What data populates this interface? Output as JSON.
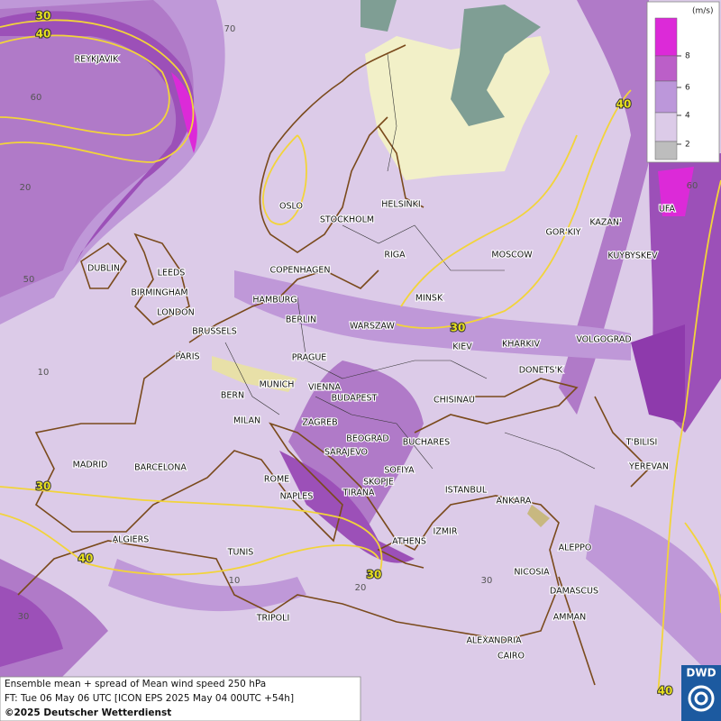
{
  "map": {
    "footer": {
      "line1": "Ensemble mean + spread of Mean wind speed 250 hPa",
      "line2": "FT: Tue 06 May 06 UTC [ICON EPS 2025 May 04 00UTC +54h]",
      "copyright": "©2025 Deutscher Wetterdienst"
    },
    "logo": "DWD",
    "legend": {
      "unit": "(m/s)",
      "ticks": [
        8,
        6,
        4,
        2
      ],
      "colors": [
        "#dc2ad8",
        "#bb5fc8",
        "#bc97da",
        "#dccbe8",
        "#bdbdbd"
      ]
    },
    "grid_labels": [
      70,
      60,
      20,
      50,
      10,
      30,
      10,
      20,
      30,
      60
    ],
    "contour_labels": [
      30,
      40,
      40,
      30,
      30,
      40,
      30,
      40
    ],
    "cities": [
      "REYKJAVIK",
      "OSLO",
      "STOCKHOLM",
      "HELSINKI",
      "DUBLIN",
      "LEEDS",
      "BIRMINGHAM",
      "LONDON",
      "COPENHAGEN",
      "RIGA",
      "MOSCOW",
      "GOR'KIY",
      "KAZAN'",
      "UFA",
      "KUYBYSKEV",
      "HAMBURG",
      "BERLIN",
      "MINSK",
      "WARSZAW",
      "BRUSSELS",
      "KIEV",
      "KHARKIV",
      "VOLGOGRAD",
      "PARIS",
      "PRAGUE",
      "DONETS'K",
      "BERN",
      "MUNICH",
      "VIENNA",
      "BUDAPEST",
      "CHISINAU",
      "MILAN",
      "ZAGREB",
      "BEOGRAD",
      "BUCHARES",
      "T'BILISI",
      "MADRID",
      "BARCELONA",
      "SARAJEVO",
      "SOFIYA",
      "YEREVAN",
      "ROME",
      "SKOPJE",
      "ISTANBUL",
      "NAPLES",
      "TIRANA",
      "ANKARA",
      "ALGIERS",
      "ATHENS",
      "IZMIR",
      "ALEPPO",
      "TUNIS",
      "NICOSIA",
      "DAMASCUS",
      "AMMAN",
      "TRIPOLI",
      "ALEXANDRIA",
      "CAIRO"
    ]
  }
}
